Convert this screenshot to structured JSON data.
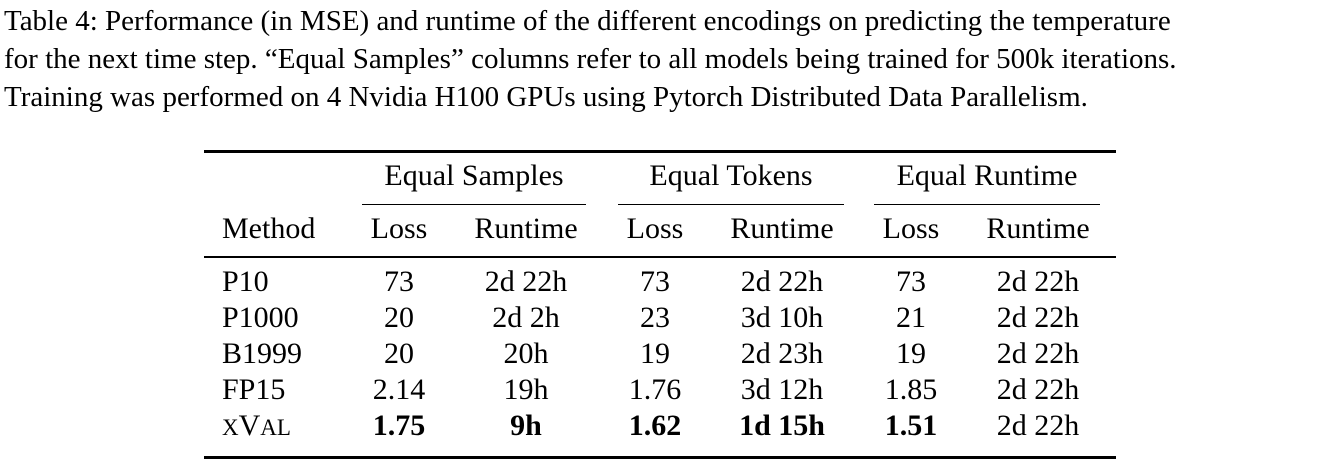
{
  "caption": {
    "lines": [
      "Table 4: Performance (in MSE) and runtime of the different encodings on predicting the temperature",
      "for the next time step. “Equal Samples” columns refer to all models being trained for 500k iterations.",
      "Training was performed on 4 Nvidia H100 GPUs using Pytorch Distributed Data Parallelism."
    ]
  },
  "table": {
    "group_headers": [
      "Equal Samples",
      "Equal Tokens",
      "Equal Runtime"
    ],
    "column_headers": [
      "Method",
      "Loss",
      "Runtime",
      "Loss",
      "Runtime",
      "Loss",
      "Runtime"
    ],
    "rows": [
      {
        "method": "P10",
        "cells": [
          "73",
          "2d 22h",
          "73",
          "2d 22h",
          "73",
          "2d 22h"
        ],
        "bold": [
          false,
          false,
          false,
          false,
          false,
          false
        ]
      },
      {
        "method": "P1000",
        "cells": [
          "20",
          "2d 2h",
          "23",
          "3d 10h",
          "21",
          "2d 22h"
        ],
        "bold": [
          false,
          false,
          false,
          false,
          false,
          false
        ]
      },
      {
        "method": "B1999",
        "cells": [
          "20",
          "20h",
          "19",
          "2d 23h",
          "19",
          "2d 22h"
        ],
        "bold": [
          false,
          false,
          false,
          false,
          false,
          false
        ]
      },
      {
        "method": "FP15",
        "cells": [
          "2.14",
          "19h",
          "1.76",
          "3d 12h",
          "1.85",
          "2d 22h"
        ],
        "bold": [
          false,
          false,
          false,
          false,
          false,
          false
        ]
      },
      {
        "method": "xVal",
        "cells": [
          "1.75",
          "9h",
          "1.62",
          "1d 15h",
          "1.51",
          "2d 22h"
        ],
        "bold": [
          true,
          true,
          true,
          true,
          true,
          false
        ]
      }
    ]
  }
}
